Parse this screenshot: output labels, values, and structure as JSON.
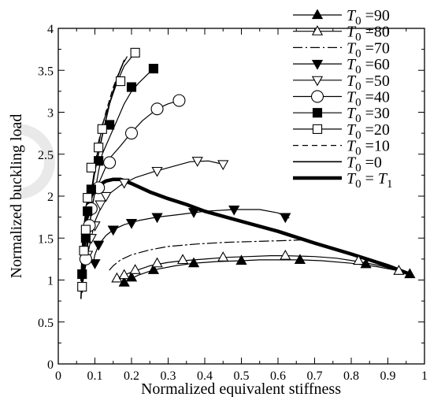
{
  "chart_data": {
    "type": "line",
    "title": "",
    "xlabel": "Normalized equivalent stiffness",
    "ylabel": "Normalized buckling load",
    "xlim": [
      0,
      1
    ],
    "ylim": [
      0,
      4
    ],
    "xticks": [
      0,
      0.1,
      0.2,
      0.3,
      0.4,
      0.5,
      0.6,
      0.7,
      0.8,
      0.9,
      1
    ],
    "xtick_labels": [
      "0",
      "0.1",
      "0.2",
      "0.3",
      "0.4",
      "0.5",
      "0.6",
      "0.7",
      "0.8",
      "0.9",
      "1"
    ],
    "yticks": [
      0,
      0.5,
      1,
      1.5,
      2,
      2.5,
      3,
      3.5,
      4
    ],
    "ytick_labels": [
      "0",
      "0.5",
      "1",
      "1.5",
      "2",
      "2.5",
      "3",
      "3.5",
      "4"
    ],
    "grid": false,
    "legend_position": "top-right",
    "series": [
      {
        "name": "T0 =90",
        "legend": {
          "sym": "T",
          "sub": "0",
          "rest": " =90"
        },
        "line": "solid",
        "width": 1.2,
        "marker": "triangle-up",
        "fill": "filled",
        "x": [
          0.18,
          0.19,
          0.22,
          0.26,
          0.32,
          0.37,
          0.43,
          0.5,
          0.55,
          0.6,
          0.66,
          0.72,
          0.8,
          0.87,
          0.93,
          0.96
        ],
        "y": [
          0.97,
          1.0,
          1.06,
          1.12,
          1.17,
          1.2,
          1.22,
          1.23,
          1.24,
          1.24,
          1.24,
          1.23,
          1.2,
          1.16,
          1.11,
          1.07
        ],
        "markers": [
          [
            0.18,
            0.97
          ],
          [
            0.2,
            1.03
          ],
          [
            0.26,
            1.12
          ],
          [
            0.37,
            1.2
          ],
          [
            0.5,
            1.23
          ],
          [
            0.66,
            1.24
          ],
          [
            0.84,
            1.19
          ],
          [
            0.96,
            1.07
          ]
        ]
      },
      {
        "name": "T0 =80",
        "legend": {
          "sym": "T",
          "sub": "0",
          "rest": " =80"
        },
        "line": "solid",
        "width": 1.2,
        "marker": "triangle-up",
        "fill": "open",
        "x": [
          0.16,
          0.18,
          0.21,
          0.25,
          0.3,
          0.34,
          0.4,
          0.46,
          0.52,
          0.58,
          0.62,
          0.7,
          0.76,
          0.82,
          0.88,
          0.93
        ],
        "y": [
          1.02,
          1.06,
          1.11,
          1.17,
          1.21,
          1.23,
          1.25,
          1.27,
          1.28,
          1.29,
          1.29,
          1.28,
          1.26,
          1.22,
          1.17,
          1.11
        ],
        "markers": [
          [
            0.16,
            1.02
          ],
          [
            0.18,
            1.06
          ],
          [
            0.21,
            1.12
          ],
          [
            0.27,
            1.2
          ],
          [
            0.34,
            1.24
          ],
          [
            0.45,
            1.27
          ],
          [
            0.62,
            1.29
          ],
          [
            0.82,
            1.23
          ],
          [
            0.93,
            1.11
          ]
        ]
      },
      {
        "name": "T0 =70",
        "legend": {
          "sym": "T",
          "sub": "0",
          "rest": " =70"
        },
        "line": "dashdot",
        "width": 1.2,
        "marker": "none",
        "fill": "none",
        "x": [
          0.14,
          0.15,
          0.17,
          0.2,
          0.25,
          0.3,
          0.38,
          0.46,
          0.54,
          0.62,
          0.68
        ],
        "y": [
          1.12,
          1.17,
          1.24,
          1.3,
          1.36,
          1.4,
          1.43,
          1.45,
          1.46,
          1.47,
          1.48
        ],
        "markers": []
      },
      {
        "name": "T0 =60",
        "legend": {
          "sym": "T",
          "sub": "0",
          "rest": " =60"
        },
        "line": "solid",
        "width": 1.2,
        "marker": "triangle-down",
        "fill": "filled",
        "x": [
          0.095,
          0.1,
          0.11,
          0.13,
          0.15,
          0.18,
          0.22,
          0.27,
          0.33,
          0.4,
          0.48,
          0.55,
          0.6,
          0.63
        ],
        "y": [
          1.2,
          1.3,
          1.42,
          1.53,
          1.6,
          1.66,
          1.71,
          1.75,
          1.78,
          1.82,
          1.84,
          1.84,
          1.8,
          1.74
        ],
        "markers": [
          [
            0.1,
            1.2
          ],
          [
            0.11,
            1.42
          ],
          [
            0.15,
            1.6
          ],
          [
            0.2,
            1.68
          ],
          [
            0.27,
            1.75
          ],
          [
            0.37,
            1.81
          ],
          [
            0.48,
            1.84
          ],
          [
            0.62,
            1.75
          ]
        ]
      },
      {
        "name": "T0 =50",
        "legend": {
          "sym": "T",
          "sub": "0",
          "rest": " =50"
        },
        "line": "solid",
        "width": 1.2,
        "marker": "triangle-down",
        "fill": "open",
        "x": [
          0.07,
          0.08,
          0.09,
          0.1,
          0.12,
          0.14,
          0.17,
          0.21,
          0.26,
          0.31,
          0.36,
          0.41,
          0.45
        ],
        "y": [
          1.05,
          1.3,
          1.5,
          1.7,
          1.9,
          2.03,
          2.13,
          2.22,
          2.29,
          2.35,
          2.41,
          2.42,
          2.38
        ],
        "markers": [
          [
            0.08,
            1.3
          ],
          [
            0.09,
            1.5
          ],
          [
            0.1,
            1.65
          ],
          [
            0.115,
            1.9
          ],
          [
            0.13,
            2.0
          ],
          [
            0.18,
            2.16
          ],
          [
            0.27,
            2.3
          ],
          [
            0.38,
            2.42
          ],
          [
            0.45,
            2.38
          ]
        ]
      },
      {
        "name": "T0 =40",
        "legend": {
          "sym": "T",
          "sub": "0",
          "rest": " =40"
        },
        "line": "solid",
        "width": 1.2,
        "marker": "circle",
        "fill": "open",
        "x": [
          0.07,
          0.08,
          0.09,
          0.1,
          0.12,
          0.14,
          0.17,
          0.2,
          0.23,
          0.27,
          0.3,
          0.33
        ],
        "y": [
          1.05,
          1.4,
          1.8,
          2.05,
          2.25,
          2.45,
          2.6,
          2.76,
          2.9,
          3.04,
          3.1,
          3.14
        ],
        "markers": [
          [
            0.075,
            1.25
          ],
          [
            0.085,
            1.65
          ],
          [
            0.09,
            1.85
          ],
          [
            0.11,
            2.1
          ],
          [
            0.14,
            2.4
          ],
          [
            0.2,
            2.75
          ],
          [
            0.27,
            3.04
          ],
          [
            0.33,
            3.14
          ]
        ]
      },
      {
        "name": "T0 =30",
        "legend": {
          "sym": "T",
          "sub": "0",
          "rest": " =30"
        },
        "line": "solid",
        "width": 1.2,
        "marker": "square",
        "fill": "filled",
        "x": [
          0.07,
          0.08,
          0.09,
          0.1,
          0.11,
          0.12,
          0.14,
          0.16,
          0.18,
          0.2,
          0.22,
          0.26
        ],
        "y": [
          1.07,
          1.5,
          1.8,
          2.05,
          2.3,
          2.5,
          2.7,
          2.9,
          3.1,
          3.25,
          3.35,
          3.52
        ],
        "markers": [
          [
            0.065,
            1.07
          ],
          [
            0.075,
            1.5
          ],
          [
            0.08,
            1.82
          ],
          [
            0.09,
            2.08
          ],
          [
            0.11,
            2.42
          ],
          [
            0.14,
            2.85
          ],
          [
            0.2,
            3.3
          ],
          [
            0.26,
            3.52
          ]
        ]
      },
      {
        "name": "T0 =20",
        "legend": {
          "sym": "T",
          "sub": "0",
          "rest": " =20"
        },
        "line": "solid",
        "width": 1.2,
        "marker": "square",
        "fill": "open",
        "x": [
          0.065,
          0.07,
          0.08,
          0.09,
          0.1,
          0.11,
          0.12,
          0.14,
          0.16,
          0.18,
          0.21
        ],
        "y": [
          0.9,
          1.3,
          1.7,
          2.05,
          2.35,
          2.6,
          2.85,
          3.1,
          3.35,
          3.55,
          3.71
        ],
        "markers": [
          [
            0.065,
            0.92
          ],
          [
            0.07,
            1.35
          ],
          [
            0.075,
            1.6
          ],
          [
            0.08,
            1.98
          ],
          [
            0.09,
            2.34
          ],
          [
            0.11,
            2.58
          ],
          [
            0.12,
            2.8
          ],
          [
            0.17,
            3.37
          ],
          [
            0.21,
            3.71
          ]
        ]
      },
      {
        "name": "T0 =10",
        "legend": {
          "sym": "T",
          "sub": "0",
          "rest": " =10"
        },
        "line": "dashed",
        "width": 1.2,
        "marker": "none",
        "fill": "none",
        "x": [
          0.065,
          0.07,
          0.08,
          0.09,
          0.1,
          0.11,
          0.13,
          0.15,
          0.17,
          0.19
        ],
        "y": [
          0.85,
          1.2,
          1.65,
          2.0,
          2.35,
          2.65,
          3.0,
          3.3,
          3.52,
          3.68
        ],
        "markers": []
      },
      {
        "name": "T0 =0",
        "legend": {
          "sym": "T",
          "sub": "0",
          "rest": " =0"
        },
        "line": "solid",
        "width": 1.6,
        "marker": "none",
        "fill": "none",
        "x": [
          0.062,
          0.065,
          0.07,
          0.08,
          0.09,
          0.1,
          0.12,
          0.14,
          0.16,
          0.18
        ],
        "y": [
          0.78,
          1.05,
          1.35,
          1.72,
          2.02,
          2.3,
          2.72,
          3.1,
          3.4,
          3.62
        ],
        "markers": []
      },
      {
        "name": "T0 = T1",
        "legend": {
          "sym": "T",
          "sub": "0",
          "rest": " = ",
          "sym2": "T",
          "sub2": "1"
        },
        "line": "solid",
        "width": 4.5,
        "marker": "none",
        "fill": "none",
        "x": [
          0.065,
          0.07,
          0.08,
          0.1,
          0.13,
          0.15,
          0.17,
          0.2,
          0.25,
          0.3,
          0.35,
          0.4,
          0.5,
          0.6,
          0.7,
          0.8,
          0.9,
          0.96
        ],
        "y": [
          1.0,
          1.5,
          1.9,
          2.1,
          2.18,
          2.2,
          2.2,
          2.15,
          2.05,
          1.97,
          1.9,
          1.82,
          1.7,
          1.58,
          1.44,
          1.31,
          1.17,
          1.07
        ],
        "markers": []
      }
    ]
  }
}
